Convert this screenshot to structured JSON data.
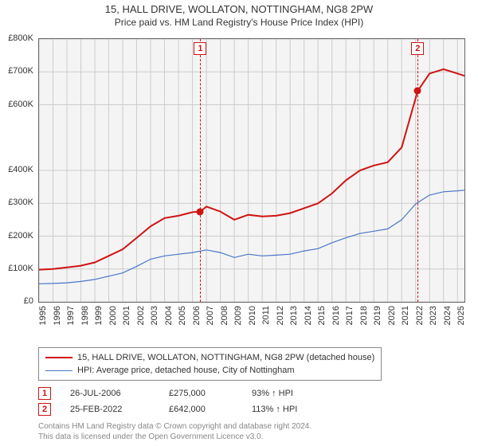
{
  "title": {
    "line1": "15, HALL DRIVE, WOLLATON, NOTTINGHAM, NG8 2PW",
    "line2": "Price paid vs. HM Land Registry's House Price Index (HPI)"
  },
  "chart": {
    "type": "line",
    "plot_bgcolor": "#f4f4f4",
    "grid_color": "#cccccc",
    "border_color": "#666666",
    "x": {
      "ticks": [
        1995,
        1996,
        1997,
        1998,
        1999,
        2000,
        2001,
        2002,
        2003,
        2004,
        2005,
        2006,
        2007,
        2008,
        2009,
        2010,
        2011,
        2012,
        2013,
        2014,
        2015,
        2016,
        2017,
        2018,
        2019,
        2020,
        2021,
        2022,
        2023,
        2024,
        2025
      ],
      "min": 1995,
      "max": 2025.5,
      "tick_fontsize": 11,
      "tick_rotation": -90
    },
    "y": {
      "ticks": [
        0,
        100000,
        200000,
        300000,
        400000,
        600000,
        700000,
        800000
      ],
      "tick_labels": [
        "£0",
        "£100K",
        "£200K",
        "£300K",
        "£400K",
        "£600K",
        "£700K",
        "£800K"
      ],
      "min": 0,
      "max": 800000,
      "tick_fontsize": 11
    },
    "series": [
      {
        "name": "price_paid",
        "label": "15, HALL DRIVE, WOLLATON, NOTTINGHAM, NG8 2PW (detached house)",
        "color": "#d11313",
        "line_width": 2,
        "x": [
          1995,
          1996,
          1997,
          1998,
          1999,
          2000,
          2001,
          2002,
          2003,
          2004,
          2005,
          2006,
          2006.56,
          2007,
          2008,
          2009,
          2010,
          2011,
          2012,
          2013,
          2014,
          2015,
          2016,
          2017,
          2018,
          2019,
          2020,
          2021,
          2022,
          2022.15,
          2023,
          2024,
          2025,
          2025.5
        ],
        "y": [
          98000,
          100000,
          105000,
          110000,
          120000,
          140000,
          160000,
          195000,
          230000,
          255000,
          262000,
          273000,
          275000,
          290000,
          275000,
          250000,
          265000,
          260000,
          262000,
          270000,
          285000,
          300000,
          330000,
          370000,
          400000,
          415000,
          425000,
          470000,
          620000,
          642000,
          695000,
          708000,
          695000,
          688000
        ]
      },
      {
        "name": "hpi",
        "label": "HPI: Average price, detached house, City of Nottingham",
        "color": "#4a76c7",
        "line_width": 1.2,
        "x": [
          1995,
          1996,
          1997,
          1998,
          1999,
          2000,
          2001,
          2002,
          2003,
          2004,
          2005,
          2006,
          2007,
          2008,
          2009,
          2010,
          2011,
          2012,
          2013,
          2014,
          2015,
          2016,
          2017,
          2018,
          2019,
          2020,
          2021,
          2022,
          2023,
          2024,
          2025,
          2025.5
        ],
        "y": [
          55000,
          56000,
          58000,
          62000,
          68000,
          78000,
          88000,
          108000,
          130000,
          140000,
          145000,
          150000,
          158000,
          150000,
          135000,
          145000,
          140000,
          142000,
          145000,
          155000,
          162000,
          180000,
          195000,
          208000,
          215000,
          222000,
          250000,
          298000,
          325000,
          335000,
          338000,
          340000
        ]
      }
    ],
    "sale_markers": [
      {
        "n": "1",
        "x": 2006.56,
        "y": 275000
      },
      {
        "n": "2",
        "x": 2022.15,
        "y": 642000
      }
    ]
  },
  "legend": {
    "border_color": "#888888"
  },
  "sales": [
    {
      "n": "1",
      "date": "26-JUL-2006",
      "price": "£275,000",
      "vs_hpi": "93% ↑ HPI"
    },
    {
      "n": "2",
      "date": "25-FEB-2022",
      "price": "£642,000",
      "vs_hpi": "113% ↑ HPI"
    }
  ],
  "footer": {
    "line1": "Contains HM Land Registry data © Crown copyright and database right 2024.",
    "line2": "This data is licensed under the Open Government Licence v3.0."
  }
}
